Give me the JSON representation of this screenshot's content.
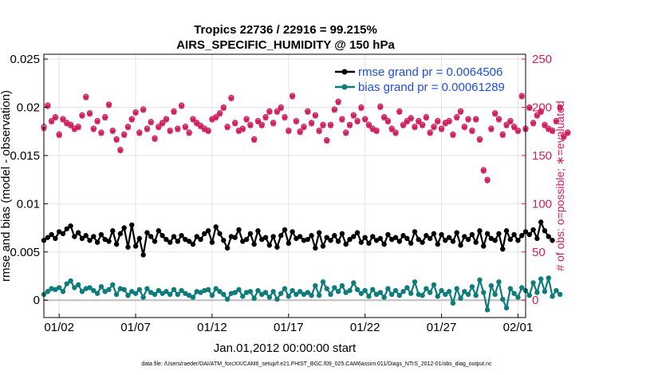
{
  "chart_data": {
    "type": "line",
    "title": "Tropics 22736 / 22916 = 99.215%",
    "subtitle": "AIRS_SPECIFIC_HUMIDITY @ 150 hPa",
    "xlabel": "Jan.01,2012 00:00:00 start",
    "ylabel": "rmse and bias (model - observation)",
    "ylabel_right": "# of obs: o=possible; ∗=evaluated",
    "xlim": [
      0.5,
      32
    ],
    "ylim": [
      -0.0018,
      0.0255
    ],
    "ylim_right": [
      -18,
      255
    ],
    "x_ticks": [
      1.5,
      6.5,
      11.5,
      16.5,
      21.5,
      26.5,
      31.5
    ],
    "x_tick_labels": [
      "01/02",
      "01/07",
      "01/12",
      "01/17",
      "01/22",
      "01/27",
      "02/01"
    ],
    "y_ticks": [
      0,
      0.005,
      0.01,
      0.015,
      0.02,
      0.025
    ],
    "y_tick_labels": [
      "0",
      "0.005",
      "0.01",
      "0.015",
      "0.02",
      "0.025"
    ],
    "y_ticks_right": [
      0,
      50,
      100,
      150,
      200,
      250
    ],
    "y_tick_labels_right": [
      "0",
      "50",
      "100",
      "150",
      "200",
      "250"
    ],
    "grid": true,
    "legend_position": "top-right",
    "time_start": 0.5,
    "time_step": 0.25,
    "series": [
      {
        "name": "rmse grand pr = 0.0064506",
        "axis": "left",
        "color": "#000000",
        "marker": "dot",
        "values": [
          0.0062,
          0.0065,
          0.0068,
          0.0064,
          0.0071,
          0.0069,
          0.0074,
          0.0077,
          0.0066,
          0.007,
          0.0064,
          0.0067,
          0.0062,
          0.0066,
          0.006,
          0.0068,
          0.0063,
          0.0061,
          0.0072,
          0.0058,
          0.0069,
          0.0075,
          0.0055,
          0.0078,
          0.0056,
          0.0064,
          0.0047,
          0.007,
          0.0066,
          0.0061,
          0.0072,
          0.0067,
          0.0063,
          0.006,
          0.0066,
          0.0061,
          0.0067,
          0.0063,
          0.0061,
          0.0058,
          0.0066,
          0.0063,
          0.0069,
          0.0072,
          0.006,
          0.0076,
          0.0069,
          0.0062,
          0.0054,
          0.0066,
          0.0065,
          0.0073,
          0.0061,
          0.0063,
          0.0069,
          0.0058,
          0.0072,
          0.0063,
          0.0065,
          0.0057,
          0.0066,
          0.0055,
          0.0067,
          0.0073,
          0.0059,
          0.0071,
          0.0064,
          0.0066,
          0.0062,
          0.0063,
          0.0067,
          0.0054,
          0.007,
          0.0056,
          0.0065,
          0.0062,
          0.0067,
          0.0061,
          0.0069,
          0.0058,
          0.0063,
          0.0066,
          0.007,
          0.006,
          0.0065,
          0.0059,
          0.0066,
          0.0062,
          0.0064,
          0.0058,
          0.0068,
          0.0063,
          0.0065,
          0.0061,
          0.0067,
          0.0064,
          0.0059,
          0.0071,
          0.0063,
          0.006,
          0.0067,
          0.0064,
          0.0069,
          0.0058,
          0.0068,
          0.0062,
          0.0065,
          0.0061,
          0.007,
          0.0057,
          0.0066,
          0.0063,
          0.0068,
          0.006,
          0.0072,
          0.0056,
          0.0069,
          0.0064,
          0.0062,
          0.0069,
          0.0053,
          0.0072,
          0.0063,
          0.0068,
          0.0062,
          0.0067,
          0.0071,
          0.0068,
          0.0073,
          0.0064,
          0.0081,
          0.0072,
          0.0066,
          0.0062
        ]
      },
      {
        "name": "bias grand pr = 0.00061289",
        "axis": "left",
        "color": "#0e7c7b",
        "marker": "dot",
        "values": [
          0.0006,
          0.0009,
          0.0012,
          0.0011,
          0.0013,
          0.0009,
          0.0017,
          0.002,
          0.0013,
          0.0016,
          0.0009,
          0.0012,
          0.0013,
          0.001,
          0.0007,
          0.0014,
          0.0009,
          0.0011,
          0.0016,
          0.0006,
          0.0012,
          0.0011,
          0.0005,
          0.0009,
          0.0007,
          0.0011,
          0.0003,
          0.0012,
          0.0008,
          0.0006,
          0.001,
          0.0007,
          0.0009,
          0.0006,
          0.0011,
          0.0006,
          0.001,
          0.0007,
          0.0005,
          0.0003,
          0.0009,
          0.0008,
          0.001,
          0.0011,
          0.0005,
          0.0012,
          0.0009,
          0.0006,
          0.0001,
          0.0007,
          0.0008,
          0.0011,
          0.0004,
          0.0008,
          0.0009,
          0.0002,
          0.001,
          0.0006,
          0.0008,
          0.0003,
          0.0009,
          0.0001,
          0.0007,
          0.0012,
          0.0004,
          0.001,
          0.0006,
          0.0009,
          0.0006,
          0.0008,
          0.0005,
          0.0015,
          0.0005,
          0.0019,
          0.0012,
          0.0006,
          0.0013,
          0.0009,
          0.0015,
          0.0008,
          0.001,
          0.0018,
          0.0011,
          0.0007,
          0.001,
          0.0004,
          0.0011,
          0.0006,
          0.0008,
          0.0003,
          0.0012,
          0.0006,
          0.001,
          0.0005,
          0.0009,
          0.0013,
          0.0007,
          0.0019,
          0.0006,
          0.0005,
          0.0012,
          0.0008,
          0.0016,
          0.0004,
          0.001,
          0.0006,
          0.0009,
          -0.0003,
          0.0012,
          0.0002,
          0.0009,
          0.0006,
          0.0014,
          0.0005,
          0.0021,
          0.0008,
          -0.001,
          0.0015,
          0.0006,
          0.0019,
          0.0001,
          -0.0008,
          0.0012,
          0.0007,
          0.0003,
          0.0013,
          0.001,
          0.0005,
          0.0018,
          0.0008,
          0.0022,
          0.0009,
          0.0023,
          0.0004,
          0.001,
          0.0006
        ]
      },
      {
        "name": "obs possible",
        "axis": "right",
        "color": "#d01f5e",
        "marker": "circle",
        "values": [
          180,
          202,
          186,
          190,
          172,
          188,
          184,
          182,
          178,
          180,
          192,
          211,
          194,
          178,
          186,
          174,
          190,
          203,
          176,
          167,
          156,
          172,
          180,
          188,
          195,
          174,
          198,
          178,
          185,
          168,
          180,
          184,
          188,
          176,
          196,
          178,
          202,
          180,
          174,
          188,
          184,
          181,
          178,
          176,
          188,
          190,
          194,
          200,
          180,
          210,
          184,
          176,
          178,
          188,
          182,
          167,
          186,
          182,
          190,
          196,
          184,
          196,
          200,
          190,
          176,
          212,
          186,
          175,
          180,
          196,
          184,
          192,
          176,
          182,
          166,
          182,
          198,
          206,
          188,
          174,
          182,
          192,
          186,
          200,
          188,
          182,
          178,
          176,
          201,
          190,
          186,
          178,
          174,
          196,
          182,
          186,
          189,
          180,
          186,
          182,
          190,
          174,
          180,
          186,
          178,
          184,
          186,
          172,
          190,
          196,
          180,
          188,
          176,
          188,
          167,
          135,
          125,
          178,
          194,
          188,
          172,
          182,
          186,
          180,
          176,
          212,
          178,
          200,
          184,
          192,
          196,
          182,
          178,
          176,
          186,
          200,
          170,
          174
        ]
      },
      {
        "name": "obs evaluated",
        "axis": "right",
        "color": "#d01f5e",
        "marker": "asterisk",
        "values": [
          178,
          201,
          185,
          189,
          171,
          187,
          183,
          181,
          177,
          179,
          191,
          210,
          193,
          177,
          185,
          173,
          189,
          202,
          175,
          166,
          155,
          171,
          179,
          187,
          194,
          173,
          197,
          177,
          184,
          167,
          179,
          183,
          187,
          175,
          195,
          177,
          201,
          179,
          173,
          187,
          183,
          180,
          177,
          175,
          187,
          189,
          193,
          199,
          179,
          209,
          183,
          175,
          177,
          187,
          181,
          166,
          185,
          181,
          189,
          195,
          183,
          195,
          199,
          189,
          175,
          211,
          185,
          174,
          179,
          195,
          183,
          191,
          175,
          181,
          165,
          181,
          197,
          205,
          187,
          173,
          181,
          191,
          185,
          199,
          187,
          181,
          177,
          175,
          200,
          189,
          185,
          177,
          173,
          195,
          181,
          185,
          188,
          179,
          185,
          181,
          189,
          173,
          179,
          185,
          177,
          183,
          185,
          171,
          189,
          195,
          179,
          187,
          175,
          187,
          166,
          134,
          124,
          177,
          193,
          187,
          171,
          181,
          185,
          179,
          175,
          211,
          177,
          199,
          183,
          191,
          195,
          181,
          177,
          175,
          185,
          199,
          169,
          173
        ]
      }
    ]
  },
  "footer": {
    "data_file": "data file: /Users/raeder/DAI/ATM_forcXX/CAM6_setup/f.e21.FHIST_BGC.f09_025.CAM6assim.011/Diags_NTrS_2012-01/obs_diag_output.nc"
  }
}
